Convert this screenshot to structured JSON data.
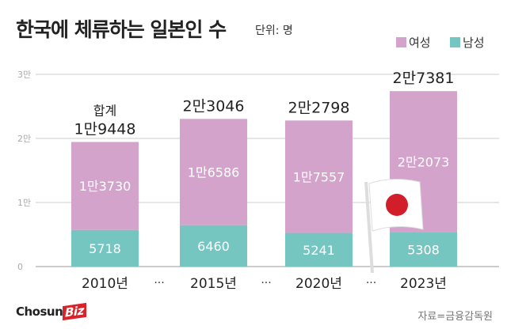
{
  "header": {
    "title": "한국에 체류하는 일본인 수",
    "unit": "단위: 명"
  },
  "footer": {
    "source": "자료=금융감독원",
    "logo_text": "Chosun",
    "logo_accent": "Biz"
  },
  "colors": {
    "female": "#d3a3cb",
    "male": "#75c6c1",
    "grid": "#cccccc"
  },
  "chart_data": {
    "type": "bar",
    "stacked": true,
    "categories": [
      "2010년",
      "2015년",
      "2020년",
      "2023년"
    ],
    "separator": "···",
    "series": [
      {
        "name": "남성",
        "values": [
          5718,
          6460,
          5241,
          5308
        ],
        "labels": [
          "5718",
          "6460",
          "5241",
          "5308"
        ]
      },
      {
        "name": "여성",
        "values": [
          13730,
          16586,
          17557,
          22073
        ],
        "labels": [
          "1만3730",
          "1만6586",
          "1만7557",
          "2만2073"
        ]
      }
    ],
    "totals": [
      19448,
      23046,
      22798,
      27381
    ],
    "total_labels": [
      "1만9448",
      "2만3046",
      "2만2798",
      "2만7381"
    ],
    "total_prefix": "합계",
    "ylim": [
      0,
      30000
    ],
    "yticks": [
      0,
      10000,
      20000,
      30000
    ],
    "ytick_labels": [
      "0",
      "1만",
      "2만",
      "3만"
    ],
    "grid": true,
    "legend": {
      "position": "top-right",
      "entries": [
        "여성",
        "남성"
      ]
    },
    "decoration": "japan-flag-icon"
  }
}
